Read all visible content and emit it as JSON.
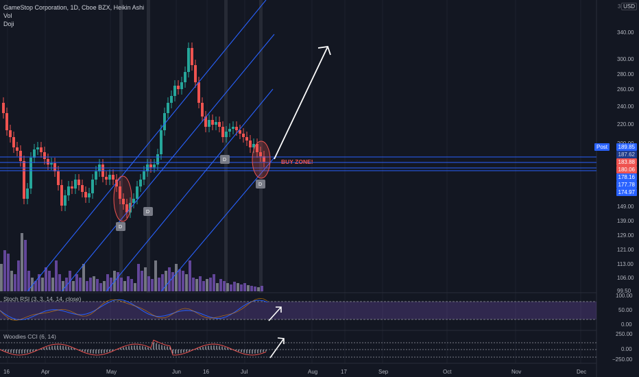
{
  "legend": {
    "symbol_line": "GameStop Corporation, 1D, Cboe BZX, Heikin Ashi",
    "vol_label": "Vol",
    "doji_label": "Doji"
  },
  "currency": "USD",
  "top_right_glyph": "3(",
  "price_axis": {
    "labels": [
      "340.00",
      "300.00",
      "280.00",
      "260.00",
      "240.00",
      "220.00",
      "200.00",
      "149.00",
      "139.00",
      "129.00",
      "121.00",
      "113.00",
      "106.00",
      "99.50"
    ]
  },
  "price_tags": {
    "post_label": "Post",
    "post_value": "189.85",
    "v1": "187.62",
    "v2": "183.88",
    "v3": "180.06",
    "v4": "178.16",
    "v5": "177.78",
    "v6": "174.97"
  },
  "colors": {
    "up": "#26a69a",
    "down": "#ef5350",
    "channel": "#2962ff",
    "volume": "#7e57c2",
    "arrow": "#ffffff",
    "buy_zone": "#ef5350",
    "background": "#131722"
  },
  "annotations": {
    "buy_zone": "BUY ZONE!",
    "doji_markers": [
      "D",
      "D",
      "D",
      "D"
    ]
  },
  "stoch": {
    "title": "Stoch RSI (3, 3, 14, 14, close)",
    "levels": [
      "100.00",
      "50.00",
      "0.00"
    ]
  },
  "cci": {
    "title": "Woodies CCI (6, 14)",
    "levels": [
      "250.00",
      "0.00",
      "−250.00"
    ]
  },
  "time_axis": {
    "labels": [
      "16",
      "Apr",
      "May",
      "Jun",
      "16",
      "Jul",
      "Aug",
      "17",
      "Sep",
      "Oct",
      "Nov",
      "Dec"
    ]
  },
  "chart_data": {
    "type": "candlestick",
    "chart_style": "Heikin Ashi",
    "symbol": "GameStop Corporation",
    "interval": "1D",
    "exchange": "Cboe BZX",
    "y_scale": "log",
    "ylim": [
      99.5,
      380
    ],
    "last_close": 180.06,
    "horizontal_levels": [
      187.62,
      183.88,
      180.06,
      178.16,
      177.78,
      174.97
    ],
    "support_resistance_lines": [
      186,
      180.5,
      178
    ],
    "note": "rising channel drawn with parallel trend lines; upward projection arrow after buy zone"
  }
}
